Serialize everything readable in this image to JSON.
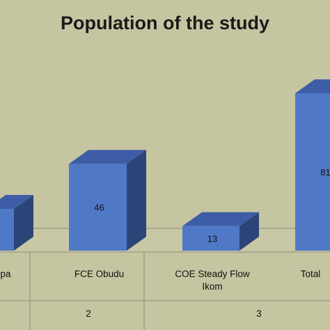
{
  "chart_data": {
    "type": "bar",
    "title": "Population of the study",
    "categories": [
      "pa",
      "FCE Obudu",
      "COE Steady Flow\nIkom",
      "Total"
    ],
    "values": [
      null,
      46,
      13,
      null
    ],
    "value_labels": [
      "",
      "46",
      "13",
      "81"
    ],
    "row_labels": [
      "2",
      "3"
    ],
    "colors": {
      "front": "#4f79c6",
      "top": "#3d5ea6",
      "side": "#2c4478",
      "background": "#c6c5a2",
      "floor": "#c9c8a6"
    }
  }
}
